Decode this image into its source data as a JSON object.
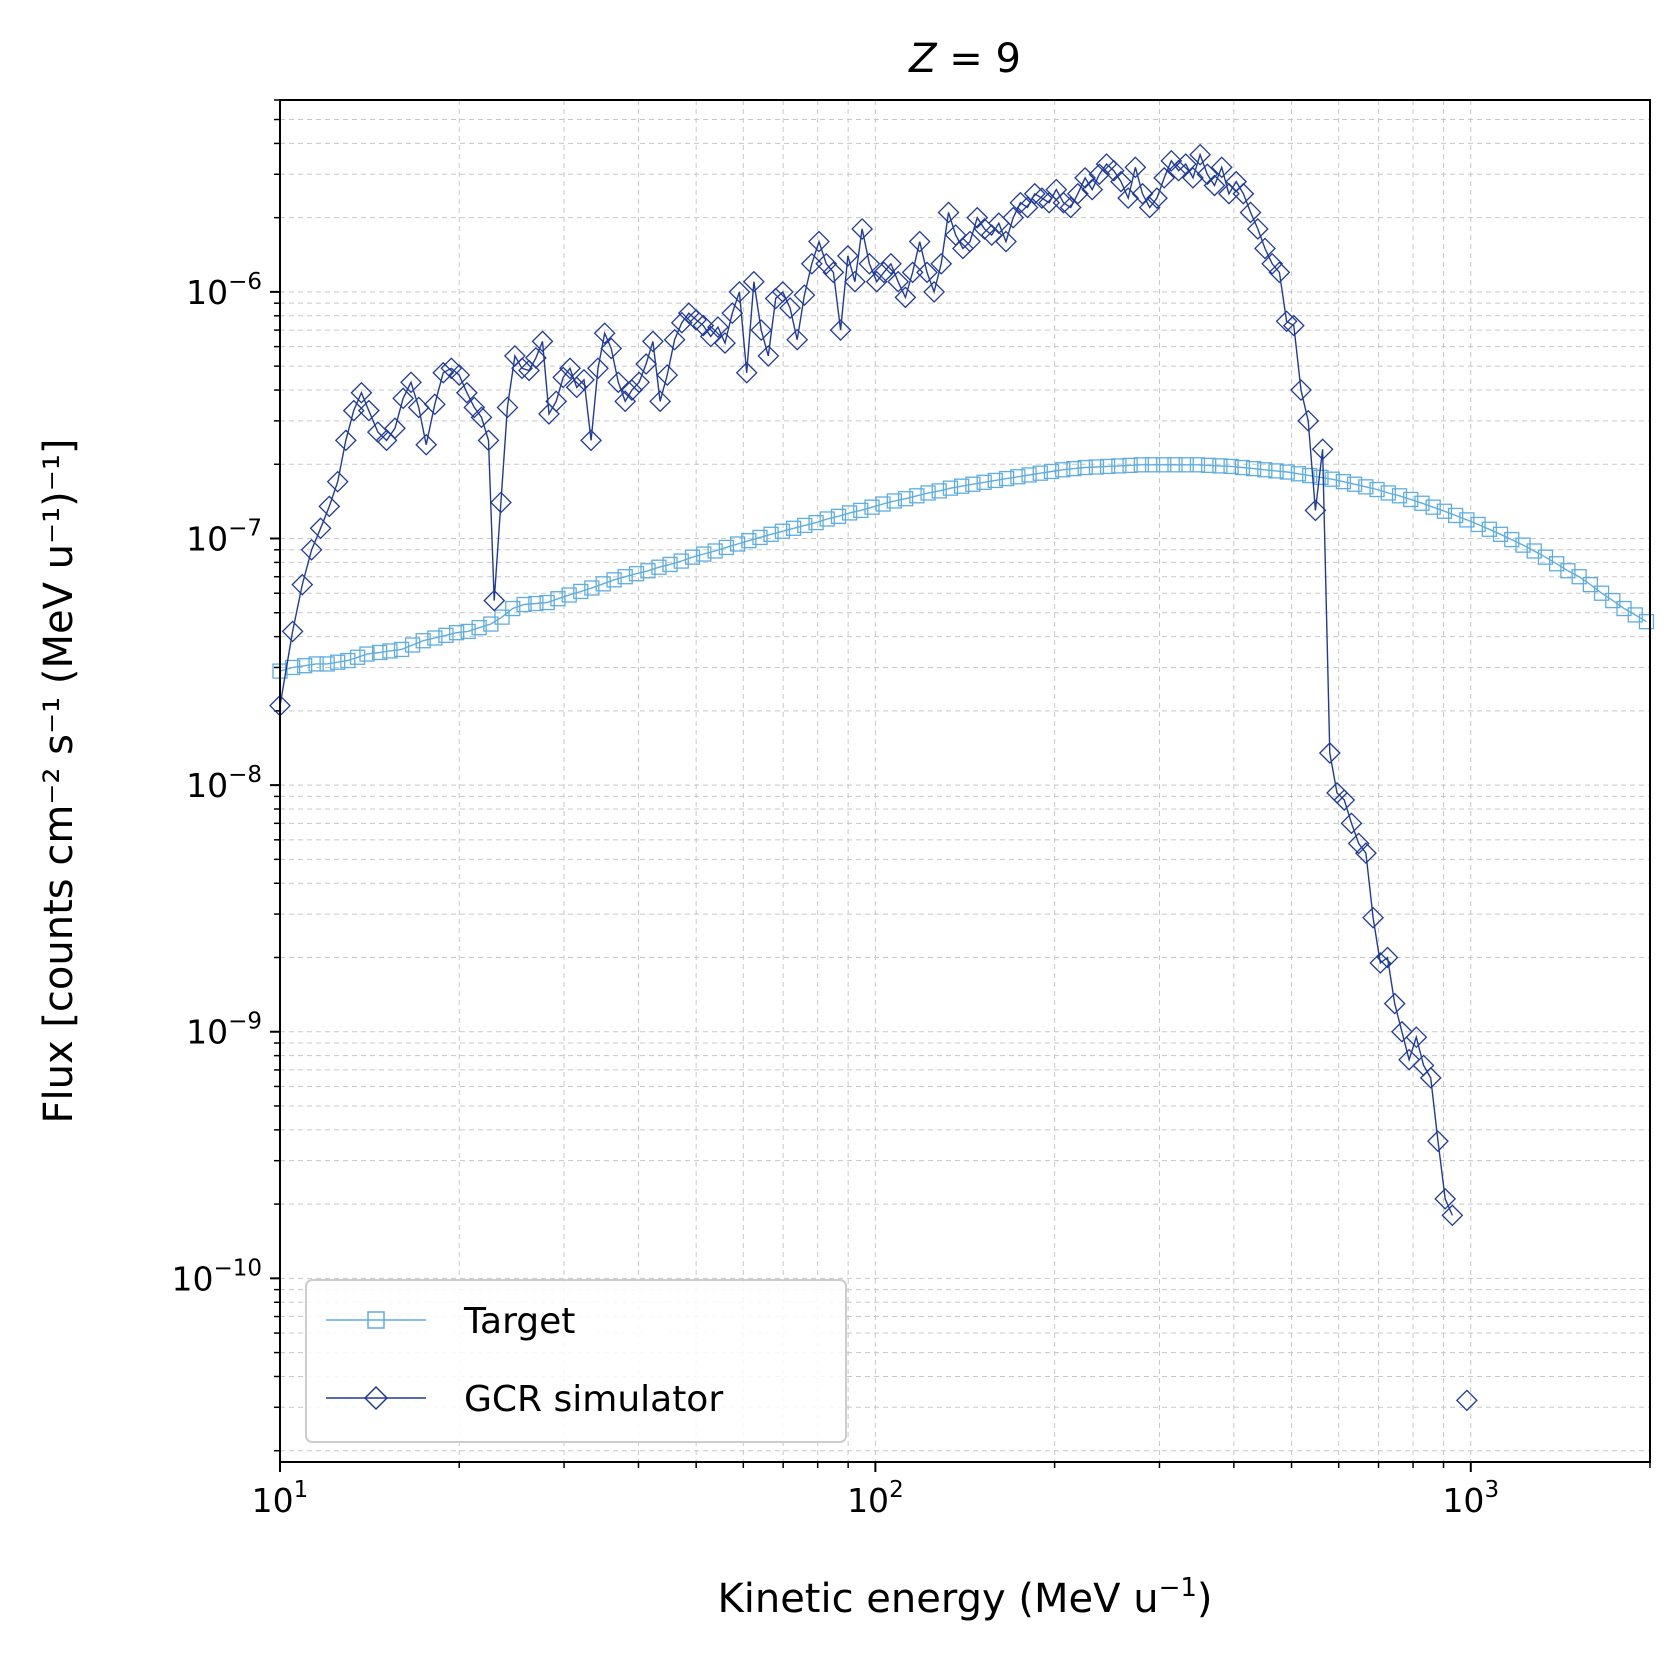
{
  "chart_data": {
    "type": "line",
    "title": "Z = 9",
    "title_math": {
      "var": "Z",
      "rest": " = 9"
    },
    "xlabel": {
      "base": "Kinetic energy (MeV u",
      "sup": "−1",
      "tail": ")"
    },
    "ylabel": "Flux [counts cm⁻² s⁻¹ (MeV u⁻¹)⁻¹]",
    "x_scale": "log",
    "y_scale": "log",
    "xlim": [
      10,
      2000
    ],
    "ylim": [
      1.8e-11,
      6e-06
    ],
    "grid": true,
    "legend_position": "lower-left",
    "x_ticks": [
      {
        "value": 10,
        "base": "10",
        "exp": "1"
      },
      {
        "value": 100,
        "base": "10",
        "exp": "2"
      },
      {
        "value": 1000,
        "base": "10",
        "exp": "3"
      }
    ],
    "y_ticks": [
      {
        "value": 1e-10,
        "base": "10",
        "exp": "−10"
      },
      {
        "value": 1e-09,
        "base": "10",
        "exp": "−9"
      },
      {
        "value": 1e-08,
        "base": "10",
        "exp": "−8"
      },
      {
        "value": 1e-07,
        "base": "10",
        "exp": "−7"
      },
      {
        "value": 1e-06,
        "base": "10",
        "exp": "−6"
      }
    ],
    "series": [
      {
        "name": "Target",
        "color": "#5dade2",
        "marker": "square",
        "points": [
          [
            10.0,
            2.9e-08
          ],
          [
            10.5,
            3e-08
          ],
          [
            11.0,
            3.05e-08
          ],
          [
            11.5,
            3.1e-08
          ],
          [
            12.0,
            3.1e-08
          ],
          [
            12.5,
            3.15e-08
          ],
          [
            13.0,
            3.2e-08
          ],
          [
            13.5,
            3.3e-08
          ],
          [
            14.0,
            3.4e-08
          ],
          [
            14.7,
            3.45e-08
          ],
          [
            15.3,
            3.5e-08
          ],
          [
            16.0,
            3.55e-08
          ],
          [
            16.7,
            3.7e-08
          ],
          [
            17.4,
            3.85e-08
          ],
          [
            18.2,
            3.95e-08
          ],
          [
            19.0,
            4.05e-08
          ],
          [
            19.8,
            4.15e-08
          ],
          [
            20.7,
            4.2e-08
          ],
          [
            21.6,
            4.35e-08
          ],
          [
            22.6,
            4.5e-08
          ],
          [
            23.6,
            4.8e-08
          ],
          [
            24.6,
            5.2e-08
          ],
          [
            25.7,
            5.4e-08
          ],
          [
            26.9,
            5.45e-08
          ],
          [
            28.1,
            5.5e-08
          ],
          [
            29.3,
            5.7e-08
          ],
          [
            30.6,
            5.9e-08
          ],
          [
            32.0,
            6.1e-08
          ],
          [
            33.4,
            6.3e-08
          ],
          [
            34.9,
            6.55e-08
          ],
          [
            36.4,
            6.8e-08
          ],
          [
            38.0,
            7e-08
          ],
          [
            39.7,
            7.2e-08
          ],
          [
            41.5,
            7.4e-08
          ],
          [
            43.3,
            7.65e-08
          ],
          [
            45.2,
            7.85e-08
          ],
          [
            47.2,
            8.1e-08
          ],
          [
            49.3,
            8.4e-08
          ],
          [
            51.5,
            8.65e-08
          ],
          [
            53.8,
            8.9e-08
          ],
          [
            56.2,
            9.2e-08
          ],
          [
            58.7,
            9.5e-08
          ],
          [
            61.3,
            9.8e-08
          ],
          [
            64.0,
            1.01e-07
          ],
          [
            66.8,
            1.04e-07
          ],
          [
            69.8,
            1.07e-07
          ],
          [
            72.9,
            1.1e-07
          ],
          [
            76.1,
            1.13e-07
          ],
          [
            79.5,
            1.16e-07
          ],
          [
            83.0,
            1.2e-07
          ],
          [
            86.7,
            1.23e-07
          ],
          [
            90.5,
            1.27e-07
          ],
          [
            94.5,
            1.3e-07
          ],
          [
            98.7,
            1.34e-07
          ],
          [
            103.0,
            1.38e-07
          ],
          [
            107.6,
            1.42e-07
          ],
          [
            112.4,
            1.45e-07
          ],
          [
            117.4,
            1.49e-07
          ],
          [
            122.6,
            1.53e-07
          ],
          [
            128.0,
            1.56e-07
          ],
          [
            133.7,
            1.6e-07
          ],
          [
            139.6,
            1.63e-07
          ],
          [
            145.8,
            1.66e-07
          ],
          [
            152.3,
            1.69e-07
          ],
          [
            159.0,
            1.72e-07
          ],
          [
            166.1,
            1.75e-07
          ],
          [
            173.5,
            1.78e-07
          ],
          [
            181.2,
            1.81e-07
          ],
          [
            189.2,
            1.84e-07
          ],
          [
            197.6,
            1.87e-07
          ],
          [
            206.4,
            1.9e-07
          ],
          [
            215.5,
            1.92e-07
          ],
          [
            225.1,
            1.94e-07
          ],
          [
            235.1,
            1.95e-07
          ],
          [
            245.5,
            1.96e-07
          ],
          [
            256.4,
            1.97e-07
          ],
          [
            267.8,
            1.98e-07
          ],
          [
            279.7,
            1.99e-07
          ],
          [
            292.1,
            1.99e-07
          ],
          [
            305.0,
            1.99e-07
          ],
          [
            318.6,
            1.99e-07
          ],
          [
            332.7,
            1.99e-07
          ],
          [
            347.5,
            1.99e-07
          ],
          [
            362.9,
            1.98e-07
          ],
          [
            379.0,
            1.97e-07
          ],
          [
            395.8,
            1.96e-07
          ],
          [
            413.4,
            1.94e-07
          ],
          [
            431.7,
            1.92e-07
          ],
          [
            450.9,
            1.9e-07
          ],
          [
            470.9,
            1.88e-07
          ],
          [
            491.8,
            1.86e-07
          ],
          [
            513.6,
            1.83e-07
          ],
          [
            536.4,
            1.8e-07
          ],
          [
            560.2,
            1.77e-07
          ],
          [
            585.1,
            1.74e-07
          ],
          [
            611.0,
            1.7e-07
          ],
          [
            638.1,
            1.66e-07
          ],
          [
            666.4,
            1.62e-07
          ],
          [
            696.0,
            1.58e-07
          ],
          [
            726.9,
            1.53e-07
          ],
          [
            759.1,
            1.49e-07
          ],
          [
            792.8,
            1.44e-07
          ],
          [
            828.0,
            1.39e-07
          ],
          [
            864.7,
            1.34e-07
          ],
          [
            903.1,
            1.29e-07
          ],
          [
            943.2,
            1.24e-07
          ],
          [
            985.0,
            1.19e-07
          ],
          [
            1028.7,
            1.14e-07
          ],
          [
            1074.4,
            1.09e-07
          ],
          [
            1122.0,
            1.04e-07
          ],
          [
            1171.8,
            9.9e-08
          ],
          [
            1223.8,
            9.4e-08
          ],
          [
            1278.1,
            8.9e-08
          ],
          [
            1334.8,
            8.4e-08
          ],
          [
            1394.0,
            7.9e-08
          ],
          [
            1455.9,
            7.4e-08
          ],
          [
            1520.5,
            7e-08
          ],
          [
            1588.0,
            6.5e-08
          ],
          [
            1658.4,
            6e-08
          ],
          [
            1732.0,
            5.6e-08
          ],
          [
            1808.9,
            5.2e-08
          ],
          [
            1889.1,
            4.9e-08
          ],
          [
            1972.9,
            4.6e-08
          ]
        ]
      },
      {
        "name": "GCR simulator",
        "color": "#1f3a9b",
        "marker": "diamond",
        "points": [
          [
            10.0,
            2.1e-08
          ],
          [
            10.5,
            4.2e-08
          ],
          [
            10.9,
            6.5e-08
          ],
          [
            11.3,
            9e-08
          ],
          [
            11.7,
            1.1e-07
          ],
          [
            12.1,
            1.35e-07
          ],
          [
            12.5,
            1.7e-07
          ],
          [
            12.9,
            2.5e-07
          ],
          [
            13.3,
            3.3e-07
          ],
          [
            13.7,
            3.9e-07
          ],
          [
            14.1,
            3.3e-07
          ],
          [
            14.6,
            2.7e-07
          ],
          [
            15.1,
            2.5e-07
          ],
          [
            15.6,
            2.8e-07
          ],
          [
            16.1,
            3.7e-07
          ],
          [
            16.6,
            4.3e-07
          ],
          [
            17.1,
            3.4e-07
          ],
          [
            17.6,
            2.4e-07
          ],
          [
            18.2,
            3.5e-07
          ],
          [
            18.8,
            4.7e-07
          ],
          [
            19.4,
            4.9e-07
          ],
          [
            20.0,
            4.6e-07
          ],
          [
            20.6,
            3.9e-07
          ],
          [
            21.2,
            3.4e-07
          ],
          [
            21.8,
            3.1e-07
          ],
          [
            22.4,
            2.5e-07
          ],
          [
            22.9,
            5.6e-08
          ],
          [
            23.5,
            1.4e-07
          ],
          [
            24.1,
            3.4e-07
          ],
          [
            24.8,
            5.5e-07
          ],
          [
            25.5,
            4.9e-07
          ],
          [
            26.2,
            4.8e-07
          ],
          [
            26.9,
            5.4e-07
          ],
          [
            27.6,
            6.3e-07
          ],
          [
            28.3,
            3.2e-07
          ],
          [
            29.1,
            3.6e-07
          ],
          [
            29.9,
            4.5e-07
          ],
          [
            30.7,
            4.9e-07
          ],
          [
            31.5,
            4.1e-07
          ],
          [
            32.4,
            4.4e-07
          ],
          [
            33.3,
            2.5e-07
          ],
          [
            34.2,
            4.9e-07
          ],
          [
            35.1,
            6.8e-07
          ],
          [
            36.0,
            5.9e-07
          ],
          [
            37.0,
            4.3e-07
          ],
          [
            38.0,
            3.6e-07
          ],
          [
            39.0,
            4e-07
          ],
          [
            40.1,
            4.3e-07
          ],
          [
            41.2,
            5.1e-07
          ],
          [
            42.3,
            6.3e-07
          ],
          [
            43.5,
            3.6e-07
          ],
          [
            44.7,
            4.6e-07
          ],
          [
            46.0,
            6.4e-07
          ],
          [
            47.3,
            7.5e-07
          ],
          [
            48.6,
            8.2e-07
          ],
          [
            50.0,
            7.7e-07
          ],
          [
            51.4,
            7.3e-07
          ],
          [
            52.9,
            6.6e-07
          ],
          [
            54.4,
            7.2e-07
          ],
          [
            55.9,
            6.2e-07
          ],
          [
            57.5,
            8.2e-07
          ],
          [
            59.1,
            1e-06
          ],
          [
            60.8,
            4.7e-07
          ],
          [
            62.5,
            1.1e-06
          ],
          [
            64.3,
            7e-07
          ],
          [
            66.1,
            5.5e-07
          ],
          [
            68.0,
            9.4e-07
          ],
          [
            69.9,
            1e-06
          ],
          [
            71.9,
            8.6e-07
          ],
          [
            73.9,
            6.4e-07
          ],
          [
            76.0,
            9.7e-07
          ],
          [
            78.2,
            1.3e-06
          ],
          [
            80.4,
            1.6e-06
          ],
          [
            82.7,
            1.3e-06
          ],
          [
            85.0,
            1.2e-06
          ],
          [
            87.4,
            7e-07
          ],
          [
            89.9,
            1.4e-06
          ],
          [
            92.4,
            1.1e-06
          ],
          [
            95.0,
            1.8e-06
          ],
          [
            97.7,
            1.3e-06
          ],
          [
            100.5,
            1.1e-06
          ],
          [
            103.3,
            1.2e-06
          ],
          [
            106.2,
            1.3e-06
          ],
          [
            109.2,
            1.1e-06
          ],
          [
            112.3,
            9.5e-07
          ],
          [
            115.5,
            1.2e-06
          ],
          [
            118.7,
            1.6e-06
          ],
          [
            122.1,
            1.2e-06
          ],
          [
            125.5,
            1e-06
          ],
          [
            129.0,
            1.3e-06
          ],
          [
            132.7,
            2.1e-06
          ],
          [
            136.4,
            1.7e-06
          ],
          [
            140.3,
            1.5e-06
          ],
          [
            144.2,
            1.6e-06
          ],
          [
            148.3,
            2e-06
          ],
          [
            152.5,
            1.8e-06
          ],
          [
            156.8,
            1.7e-06
          ],
          [
            161.2,
            1.9e-06
          ],
          [
            165.7,
            1.6e-06
          ],
          [
            170.4,
            2e-06
          ],
          [
            175.2,
            2.3e-06
          ],
          [
            180.1,
            2.2e-06
          ],
          [
            185.2,
            2.5e-06
          ],
          [
            190.4,
            2.4e-06
          ],
          [
            195.8,
            2.3e-06
          ],
          [
            201.3,
            2.6e-06
          ],
          [
            207.0,
            2.3e-06
          ],
          [
            212.8,
            2.2e-06
          ],
          [
            218.8,
            2.5e-06
          ],
          [
            225.0,
            2.9e-06
          ],
          [
            231.3,
            2.6e-06
          ],
          [
            237.8,
            3e-06
          ],
          [
            244.5,
            3.3e-06
          ],
          [
            251.4,
            3.1e-06
          ],
          [
            258.5,
            2.8e-06
          ],
          [
            265.8,
            2.4e-06
          ],
          [
            273.3,
            3.2e-06
          ],
          [
            281.0,
            2.5e-06
          ],
          [
            288.9,
            2.2e-06
          ],
          [
            297.1,
            2.4e-06
          ],
          [
            305.5,
            2.9e-06
          ],
          [
            314.1,
            3.4e-06
          ],
          [
            323.0,
            3.1e-06
          ],
          [
            332.1,
            3.3e-06
          ],
          [
            341.5,
            2.9e-06
          ],
          [
            351.1,
            3.6e-06
          ],
          [
            361.0,
            3e-06
          ],
          [
            371.2,
            2.7e-06
          ],
          [
            381.7,
            3.2e-06
          ],
          [
            392.5,
            2.5e-06
          ],
          [
            403.6,
            2.8e-06
          ],
          [
            415.0,
            2.5e-06
          ],
          [
            426.7,
            2.1e-06
          ],
          [
            438.8,
            1.8e-06
          ],
          [
            451.2,
            1.5e-06
          ],
          [
            463.9,
            1.3e-06
          ],
          [
            477.0,
            1.2e-06
          ],
          [
            490.5,
            7.6e-07
          ],
          [
            504.4,
            7.3e-07
          ],
          [
            518.6,
            4e-07
          ],
          [
            533.3,
            3e-07
          ],
          [
            548.4,
            1.3e-07
          ],
          [
            563.9,
            2.3e-07
          ],
          [
            579.8,
            1.35e-08
          ],
          [
            596.2,
            9.3e-09
          ],
          [
            613.1,
            8.7e-09
          ],
          [
            630.4,
            7e-09
          ],
          [
            648.2,
            5.8e-09
          ],
          [
            666.6,
            5.3e-09
          ],
          [
            685.4,
            2.9e-09
          ],
          [
            704.8,
            1.9e-09
          ],
          [
            724.7,
            2e-09
          ],
          [
            745.2,
            1.3e-09
          ],
          [
            766.3,
            1e-09
          ],
          [
            787.9,
            7.7e-10
          ],
          [
            810.2,
            9.5e-10
          ],
          [
            833.1,
            7.3e-10
          ],
          [
            856.6,
            6.5e-10
          ],
          [
            880.8,
            3.6e-10
          ],
          [
            905.7,
            2.1e-10
          ],
          [
            931.3,
            1.8e-10
          ]
        ],
        "isolated_points": [
          [
            985.0,
            3.2e-11
          ]
        ]
      }
    ]
  }
}
